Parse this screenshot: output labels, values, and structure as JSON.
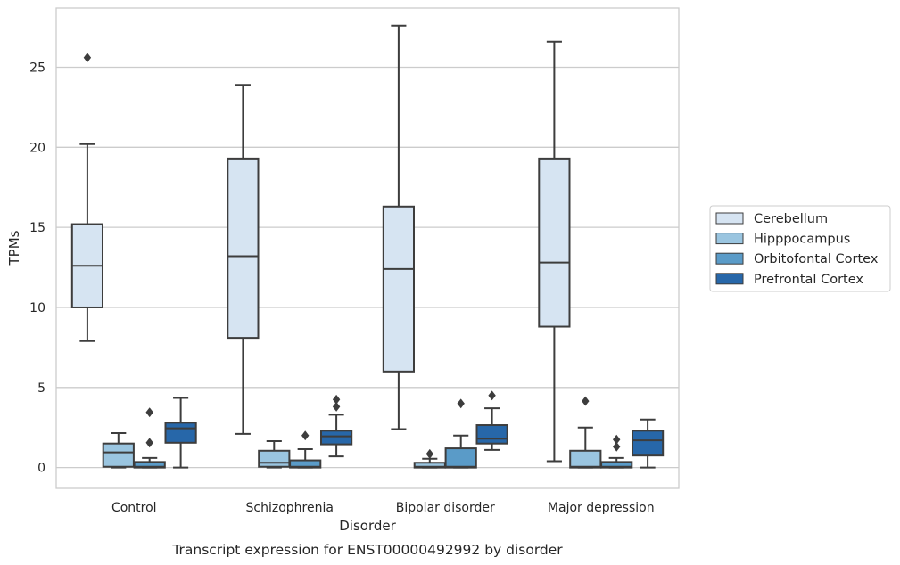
{
  "caption": "Transcript expression for ENST00000492992 by disorder",
  "chart_data": {
    "type": "box",
    "title": "",
    "xlabel": "Disorder",
    "ylabel": "TPMs",
    "ylim": [
      -1.3,
      28.7
    ],
    "yticks": [
      0,
      5,
      10,
      15,
      20,
      25
    ],
    "grid": "horizontal",
    "legend_position": "right",
    "categories": [
      "Control",
      "Schizophrenia",
      "Bipolar disorder",
      "Major depression"
    ],
    "series": [
      {
        "name": "Cerebellum",
        "color": "#d6e4f2",
        "boxes": [
          {
            "whisker_low": 7.9,
            "q1": 10.0,
            "median": 12.6,
            "q3": 15.2,
            "whisker_high": 20.2,
            "outliers": [
              25.6
            ]
          },
          {
            "whisker_low": 2.1,
            "q1": 8.1,
            "median": 13.2,
            "q3": 19.3,
            "whisker_high": 23.9,
            "outliers": []
          },
          {
            "whisker_low": 2.4,
            "q1": 6.0,
            "median": 12.4,
            "q3": 16.3,
            "whisker_high": 27.6,
            "outliers": []
          },
          {
            "whisker_low": 0.4,
            "q1": 8.8,
            "median": 12.8,
            "q3": 19.3,
            "whisker_high": 26.6,
            "outliers": []
          }
        ]
      },
      {
        "name": "Hipppocampus",
        "color": "#9ac5e0",
        "boxes": [
          {
            "whisker_low": 0.0,
            "q1": 0.05,
            "median": 0.95,
            "q3": 1.5,
            "whisker_high": 2.15,
            "outliers": []
          },
          {
            "whisker_low": 0.0,
            "q1": 0.05,
            "median": 0.3,
            "q3": 1.05,
            "whisker_high": 1.65,
            "outliers": []
          },
          {
            "whisker_low": 0.0,
            "q1": 0.0,
            "median": 0.05,
            "q3": 0.3,
            "whisker_high": 0.55,
            "outliers": [
              0.85
            ]
          },
          {
            "whisker_low": 0.0,
            "q1": 0.0,
            "median": 0.05,
            "q3": 1.05,
            "whisker_high": 2.5,
            "outliers": [
              4.15
            ]
          }
        ]
      },
      {
        "name": "Orbitofontal Cortex",
        "color": "#5a9bc8",
        "boxes": [
          {
            "whisker_low": 0.0,
            "q1": 0.0,
            "median": 0.05,
            "q3": 0.35,
            "whisker_high": 0.6,
            "outliers": [
              1.55,
              3.45
            ]
          },
          {
            "whisker_low": 0.0,
            "q1": 0.0,
            "median": 0.05,
            "q3": 0.45,
            "whisker_high": 1.15,
            "outliers": [
              2.0
            ]
          },
          {
            "whisker_low": 0.0,
            "q1": 0.0,
            "median": 0.05,
            "q3": 1.2,
            "whisker_high": 2.0,
            "outliers": [
              4.0
            ]
          },
          {
            "whisker_low": 0.0,
            "q1": 0.0,
            "median": 0.05,
            "q3": 0.35,
            "whisker_high": 0.6,
            "outliers": [
              1.3,
              1.75
            ]
          }
        ]
      },
      {
        "name": "Prefrontal Cortex",
        "color": "#2767a9",
        "boxes": [
          {
            "whisker_low": 0.0,
            "q1": 1.55,
            "median": 2.45,
            "q3": 2.8,
            "whisker_high": 4.35,
            "outliers": []
          },
          {
            "whisker_low": 0.7,
            "q1": 1.45,
            "median": 1.95,
            "q3": 2.3,
            "whisker_high": 3.3,
            "outliers": [
              3.8,
              4.25
            ]
          },
          {
            "whisker_low": 1.1,
            "q1": 1.5,
            "median": 1.8,
            "q3": 2.65,
            "whisker_high": 3.7,
            "outliers": [
              4.5
            ]
          },
          {
            "whisker_low": 0.0,
            "q1": 0.75,
            "median": 1.7,
            "q3": 2.3,
            "whisker_high": 3.0,
            "outliers": []
          }
        ]
      }
    ]
  }
}
